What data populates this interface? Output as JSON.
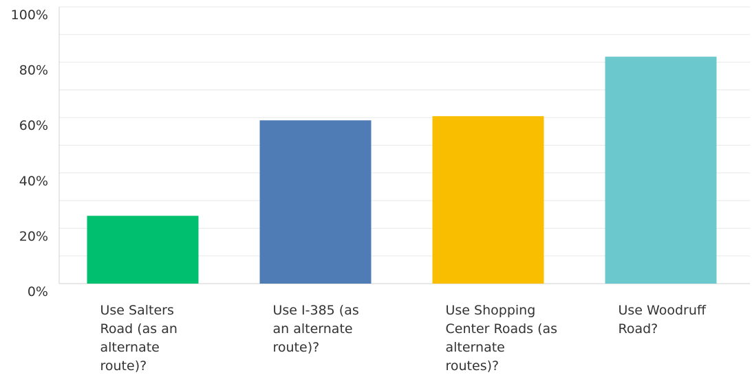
{
  "chart_data": {
    "type": "bar",
    "categories": [
      "Use Salters Road (as an alternate route)?",
      "Use I-385 (as an alternate route)?",
      "Use Shopping Center Roads (as alternate routes)?",
      "Use Woodruff Road?"
    ],
    "category_lines": [
      [
        "Use Salters",
        "Road (as an",
        "alternate",
        "route)?"
      ],
      [
        "Use I-385 (as",
        "an alternate",
        "route)?"
      ],
      [
        "Use Shopping",
        "Center Roads (as",
        "alternate",
        "routes)?"
      ],
      [
        "Use Woodruff",
        "Road?"
      ]
    ],
    "values": [
      24.5,
      59,
      60.5,
      82
    ],
    "value_unit": "%",
    "ylim": [
      0,
      100
    ],
    "yticks": [
      "0%",
      "20%",
      "40%",
      "60%",
      "80%",
      "100%"
    ],
    "ytick_values": [
      0,
      20,
      40,
      60,
      80,
      100
    ],
    "colors": [
      "#00bf6f",
      "#507cb6",
      "#f9be00",
      "#6bc8cd"
    ],
    "gridline_color": "#e8e8e8",
    "axis_color": "#d0d0d0",
    "grid": true,
    "title": "",
    "xlabel": "",
    "ylabel": ""
  }
}
